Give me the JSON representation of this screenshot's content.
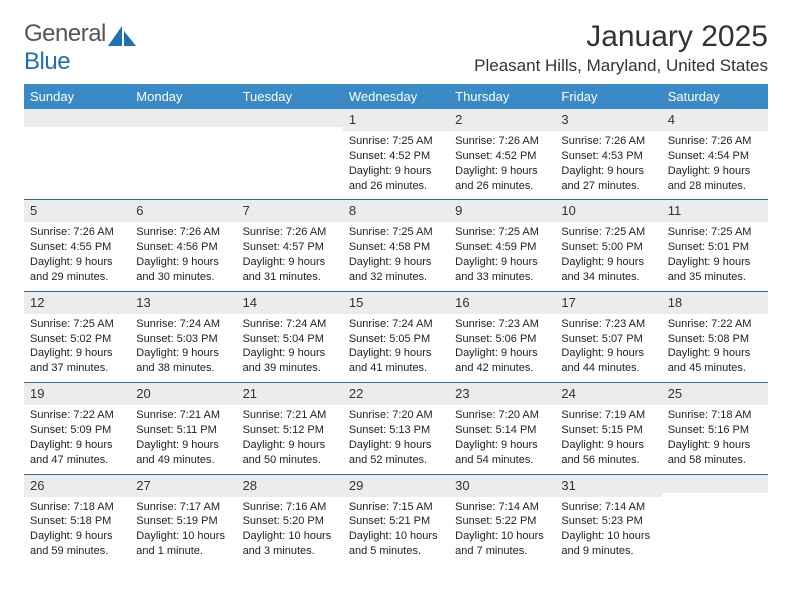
{
  "brand": {
    "part1": "General",
    "part2": "Blue"
  },
  "header": {
    "month_title": "January 2025",
    "location": "Pleasant Hills, Maryland, United States"
  },
  "colors": {
    "header_bg": "#3a8ac8",
    "week_rule": "#2b6ca3",
    "daynum_bg": "#ececec",
    "brand_blue": "#1f6fb2"
  },
  "day_names": [
    "Sunday",
    "Monday",
    "Tuesday",
    "Wednesday",
    "Thursday",
    "Friday",
    "Saturday"
  ],
  "weeks": [
    [
      null,
      null,
      null,
      {
        "n": "1",
        "sunrise": "Sunrise: 7:25 AM",
        "sunset": "Sunset: 4:52 PM",
        "day1": "Daylight: 9 hours",
        "day2": "and 26 minutes."
      },
      {
        "n": "2",
        "sunrise": "Sunrise: 7:26 AM",
        "sunset": "Sunset: 4:52 PM",
        "day1": "Daylight: 9 hours",
        "day2": "and 26 minutes."
      },
      {
        "n": "3",
        "sunrise": "Sunrise: 7:26 AM",
        "sunset": "Sunset: 4:53 PM",
        "day1": "Daylight: 9 hours",
        "day2": "and 27 minutes."
      },
      {
        "n": "4",
        "sunrise": "Sunrise: 7:26 AM",
        "sunset": "Sunset: 4:54 PM",
        "day1": "Daylight: 9 hours",
        "day2": "and 28 minutes."
      }
    ],
    [
      {
        "n": "5",
        "sunrise": "Sunrise: 7:26 AM",
        "sunset": "Sunset: 4:55 PM",
        "day1": "Daylight: 9 hours",
        "day2": "and 29 minutes."
      },
      {
        "n": "6",
        "sunrise": "Sunrise: 7:26 AM",
        "sunset": "Sunset: 4:56 PM",
        "day1": "Daylight: 9 hours",
        "day2": "and 30 minutes."
      },
      {
        "n": "7",
        "sunrise": "Sunrise: 7:26 AM",
        "sunset": "Sunset: 4:57 PM",
        "day1": "Daylight: 9 hours",
        "day2": "and 31 minutes."
      },
      {
        "n": "8",
        "sunrise": "Sunrise: 7:25 AM",
        "sunset": "Sunset: 4:58 PM",
        "day1": "Daylight: 9 hours",
        "day2": "and 32 minutes."
      },
      {
        "n": "9",
        "sunrise": "Sunrise: 7:25 AM",
        "sunset": "Sunset: 4:59 PM",
        "day1": "Daylight: 9 hours",
        "day2": "and 33 minutes."
      },
      {
        "n": "10",
        "sunrise": "Sunrise: 7:25 AM",
        "sunset": "Sunset: 5:00 PM",
        "day1": "Daylight: 9 hours",
        "day2": "and 34 minutes."
      },
      {
        "n": "11",
        "sunrise": "Sunrise: 7:25 AM",
        "sunset": "Sunset: 5:01 PM",
        "day1": "Daylight: 9 hours",
        "day2": "and 35 minutes."
      }
    ],
    [
      {
        "n": "12",
        "sunrise": "Sunrise: 7:25 AM",
        "sunset": "Sunset: 5:02 PM",
        "day1": "Daylight: 9 hours",
        "day2": "and 37 minutes."
      },
      {
        "n": "13",
        "sunrise": "Sunrise: 7:24 AM",
        "sunset": "Sunset: 5:03 PM",
        "day1": "Daylight: 9 hours",
        "day2": "and 38 minutes."
      },
      {
        "n": "14",
        "sunrise": "Sunrise: 7:24 AM",
        "sunset": "Sunset: 5:04 PM",
        "day1": "Daylight: 9 hours",
        "day2": "and 39 minutes."
      },
      {
        "n": "15",
        "sunrise": "Sunrise: 7:24 AM",
        "sunset": "Sunset: 5:05 PM",
        "day1": "Daylight: 9 hours",
        "day2": "and 41 minutes."
      },
      {
        "n": "16",
        "sunrise": "Sunrise: 7:23 AM",
        "sunset": "Sunset: 5:06 PM",
        "day1": "Daylight: 9 hours",
        "day2": "and 42 minutes."
      },
      {
        "n": "17",
        "sunrise": "Sunrise: 7:23 AM",
        "sunset": "Sunset: 5:07 PM",
        "day1": "Daylight: 9 hours",
        "day2": "and 44 minutes."
      },
      {
        "n": "18",
        "sunrise": "Sunrise: 7:22 AM",
        "sunset": "Sunset: 5:08 PM",
        "day1": "Daylight: 9 hours",
        "day2": "and 45 minutes."
      }
    ],
    [
      {
        "n": "19",
        "sunrise": "Sunrise: 7:22 AM",
        "sunset": "Sunset: 5:09 PM",
        "day1": "Daylight: 9 hours",
        "day2": "and 47 minutes."
      },
      {
        "n": "20",
        "sunrise": "Sunrise: 7:21 AM",
        "sunset": "Sunset: 5:11 PM",
        "day1": "Daylight: 9 hours",
        "day2": "and 49 minutes."
      },
      {
        "n": "21",
        "sunrise": "Sunrise: 7:21 AM",
        "sunset": "Sunset: 5:12 PM",
        "day1": "Daylight: 9 hours",
        "day2": "and 50 minutes."
      },
      {
        "n": "22",
        "sunrise": "Sunrise: 7:20 AM",
        "sunset": "Sunset: 5:13 PM",
        "day1": "Daylight: 9 hours",
        "day2": "and 52 minutes."
      },
      {
        "n": "23",
        "sunrise": "Sunrise: 7:20 AM",
        "sunset": "Sunset: 5:14 PM",
        "day1": "Daylight: 9 hours",
        "day2": "and 54 minutes."
      },
      {
        "n": "24",
        "sunrise": "Sunrise: 7:19 AM",
        "sunset": "Sunset: 5:15 PM",
        "day1": "Daylight: 9 hours",
        "day2": "and 56 minutes."
      },
      {
        "n": "25",
        "sunrise": "Sunrise: 7:18 AM",
        "sunset": "Sunset: 5:16 PM",
        "day1": "Daylight: 9 hours",
        "day2": "and 58 minutes."
      }
    ],
    [
      {
        "n": "26",
        "sunrise": "Sunrise: 7:18 AM",
        "sunset": "Sunset: 5:18 PM",
        "day1": "Daylight: 9 hours",
        "day2": "and 59 minutes."
      },
      {
        "n": "27",
        "sunrise": "Sunrise: 7:17 AM",
        "sunset": "Sunset: 5:19 PM",
        "day1": "Daylight: 10 hours",
        "day2": "and 1 minute."
      },
      {
        "n": "28",
        "sunrise": "Sunrise: 7:16 AM",
        "sunset": "Sunset: 5:20 PM",
        "day1": "Daylight: 10 hours",
        "day2": "and 3 minutes."
      },
      {
        "n": "29",
        "sunrise": "Sunrise: 7:15 AM",
        "sunset": "Sunset: 5:21 PM",
        "day1": "Daylight: 10 hours",
        "day2": "and 5 minutes."
      },
      {
        "n": "30",
        "sunrise": "Sunrise: 7:14 AM",
        "sunset": "Sunset: 5:22 PM",
        "day1": "Daylight: 10 hours",
        "day2": "and 7 minutes."
      },
      {
        "n": "31",
        "sunrise": "Sunrise: 7:14 AM",
        "sunset": "Sunset: 5:23 PM",
        "day1": "Daylight: 10 hours",
        "day2": "and 9 minutes."
      },
      null
    ]
  ]
}
